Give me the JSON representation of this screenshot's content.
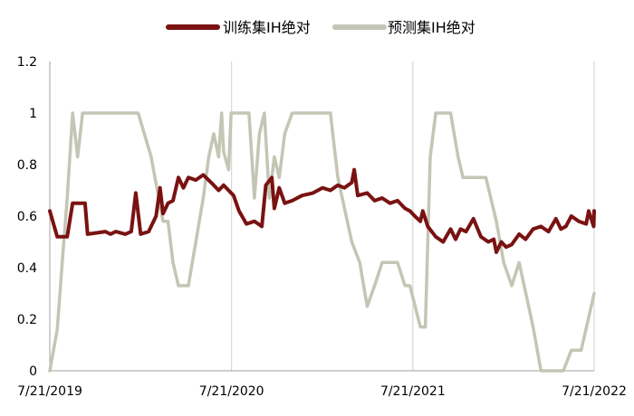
{
  "chart_data": {
    "type": "line",
    "legend_position": "top-center",
    "grid": "vertical",
    "x_tick_labels": [
      "7/21/2019",
      "7/21/2020",
      "7/21/2021",
      "7/21/2022"
    ],
    "y_tick_labels": [
      "0",
      "0.2",
      "0.4",
      "0.6",
      "0.8",
      "1",
      "1.2"
    ],
    "ylim": [
      0,
      1.2
    ],
    "y_ticks": [
      0,
      0.2,
      0.4,
      0.6,
      0.8,
      1,
      1.2
    ],
    "x_range": [
      "2019-07-21",
      "2022-07-21"
    ],
    "x_ticks": [
      "2019-07-21",
      "2020-07-21",
      "2021-07-21",
      "2022-07-21"
    ],
    "colors": {
      "train": "#7a1212",
      "predict": "#c5c5b5",
      "grid": "#d0d0d0",
      "axis": "#a0a0a0"
    },
    "series": [
      {
        "name": "训练集IH绝对",
        "key": "train",
        "points": [
          [
            "2019-07-21",
            0.62
          ],
          [
            "2019-08-05",
            0.52
          ],
          [
            "2019-08-25",
            0.52
          ],
          [
            "2019-09-05",
            0.65
          ],
          [
            "2019-09-30",
            0.65
          ],
          [
            "2019-10-05",
            0.53
          ],
          [
            "2019-11-10",
            0.54
          ],
          [
            "2019-11-20",
            0.53
          ],
          [
            "2019-12-01",
            0.54
          ],
          [
            "2019-12-20",
            0.53
          ],
          [
            "2020-01-01",
            0.54
          ],
          [
            "2020-01-10",
            0.69
          ],
          [
            "2020-01-20",
            0.53
          ],
          [
            "2020-02-05",
            0.54
          ],
          [
            "2020-02-20",
            0.6
          ],
          [
            "2020-02-28",
            0.71
          ],
          [
            "2020-03-05",
            0.61
          ],
          [
            "2020-03-15",
            0.65
          ],
          [
            "2020-03-25",
            0.66
          ],
          [
            "2020-04-05",
            0.75
          ],
          [
            "2020-04-15",
            0.71
          ],
          [
            "2020-04-25",
            0.75
          ],
          [
            "2020-05-10",
            0.74
          ],
          [
            "2020-05-25",
            0.76
          ],
          [
            "2020-06-10",
            0.73
          ],
          [
            "2020-06-25",
            0.7
          ],
          [
            "2020-07-05",
            0.72
          ],
          [
            "2020-07-15",
            0.7
          ],
          [
            "2020-07-25",
            0.68
          ],
          [
            "2020-08-05",
            0.62
          ],
          [
            "2020-08-20",
            0.57
          ],
          [
            "2020-09-05",
            0.58
          ],
          [
            "2020-09-20",
            0.56
          ],
          [
            "2020-09-28",
            0.72
          ],
          [
            "2020-10-10",
            0.75
          ],
          [
            "2020-10-15",
            0.63
          ],
          [
            "2020-10-25",
            0.71
          ],
          [
            "2020-11-05",
            0.65
          ],
          [
            "2020-11-20",
            0.66
          ],
          [
            "2020-12-10",
            0.68
          ],
          [
            "2021-01-01",
            0.69
          ],
          [
            "2021-01-20",
            0.71
          ],
          [
            "2021-02-05",
            0.7
          ],
          [
            "2021-02-20",
            0.72
          ],
          [
            "2021-03-05",
            0.71
          ],
          [
            "2021-03-20",
            0.73
          ],
          [
            "2021-03-25",
            0.78
          ],
          [
            "2021-04-01",
            0.68
          ],
          [
            "2021-04-20",
            0.69
          ],
          [
            "2021-05-05",
            0.66
          ],
          [
            "2021-05-20",
            0.67
          ],
          [
            "2021-06-05",
            0.65
          ],
          [
            "2021-06-20",
            0.66
          ],
          [
            "2021-07-05",
            0.63
          ],
          [
            "2021-07-15",
            0.62
          ],
          [
            "2021-07-25",
            0.6
          ],
          [
            "2021-08-05",
            0.58
          ],
          [
            "2021-08-10",
            0.62
          ],
          [
            "2021-08-20",
            0.56
          ],
          [
            "2021-09-05",
            0.52
          ],
          [
            "2021-09-20",
            0.5
          ],
          [
            "2021-10-05",
            0.55
          ],
          [
            "2021-10-15",
            0.51
          ],
          [
            "2021-10-25",
            0.55
          ],
          [
            "2021-11-05",
            0.54
          ],
          [
            "2021-11-20",
            0.59
          ],
          [
            "2021-12-05",
            0.52
          ],
          [
            "2021-12-20",
            0.5
          ],
          [
            "2021-12-31",
            0.51
          ],
          [
            "2022-01-05",
            0.46
          ],
          [
            "2022-01-15",
            0.5
          ],
          [
            "2022-01-25",
            0.48
          ],
          [
            "2022-02-05",
            0.49
          ],
          [
            "2022-02-20",
            0.53
          ],
          [
            "2022-03-05",
            0.51
          ],
          [
            "2022-03-20",
            0.55
          ],
          [
            "2022-04-05",
            0.56
          ],
          [
            "2022-04-20",
            0.54
          ],
          [
            "2022-05-05",
            0.59
          ],
          [
            "2022-05-15",
            0.55
          ],
          [
            "2022-05-25",
            0.56
          ],
          [
            "2022-06-05",
            0.6
          ],
          [
            "2022-06-20",
            0.58
          ],
          [
            "2022-07-05",
            0.57
          ],
          [
            "2022-07-10",
            0.62
          ],
          [
            "2022-07-20",
            0.56
          ],
          [
            "2022-07-21",
            0.62
          ]
        ]
      },
      {
        "name": "预测集IH绝对",
        "key": "predict",
        "points": [
          [
            "2019-07-21",
            0.0
          ],
          [
            "2019-08-05",
            0.16
          ],
          [
            "2019-08-15",
            0.42
          ],
          [
            "2019-08-25",
            0.67
          ],
          [
            "2019-09-05",
            1.0
          ],
          [
            "2019-09-15",
            0.83
          ],
          [
            "2019-09-25",
            1.0
          ],
          [
            "2020-01-01",
            1.0
          ],
          [
            "2020-01-15",
            1.0
          ],
          [
            "2020-02-10",
            0.83
          ],
          [
            "2020-03-05",
            0.58
          ],
          [
            "2020-03-15",
            0.58
          ],
          [
            "2020-03-25",
            0.42
          ],
          [
            "2020-04-05",
            0.33
          ],
          [
            "2020-04-25",
            0.33
          ],
          [
            "2020-05-10",
            0.5
          ],
          [
            "2020-05-25",
            0.67
          ],
          [
            "2020-06-05",
            0.83
          ],
          [
            "2020-06-15",
            0.92
          ],
          [
            "2020-06-25",
            0.83
          ],
          [
            "2020-07-01",
            1.0
          ],
          [
            "2020-07-05",
            0.85
          ],
          [
            "2020-07-15",
            0.78
          ],
          [
            "2020-07-20",
            1.0
          ],
          [
            "2020-08-25",
            1.0
          ],
          [
            "2020-09-05",
            0.67
          ],
          [
            "2020-09-15",
            0.92
          ],
          [
            "2020-09-25",
            1.0
          ],
          [
            "2020-10-05",
            0.67
          ],
          [
            "2020-10-15",
            0.83
          ],
          [
            "2020-10-25",
            0.75
          ],
          [
            "2020-11-05",
            0.92
          ],
          [
            "2020-11-20",
            1.0
          ],
          [
            "2021-02-05",
            1.0
          ],
          [
            "2021-02-20",
            0.75
          ],
          [
            "2021-03-20",
            0.5
          ],
          [
            "2021-04-05",
            0.42
          ],
          [
            "2021-04-20",
            0.25
          ],
          [
            "2021-05-05",
            0.33
          ],
          [
            "2021-05-20",
            0.42
          ],
          [
            "2021-06-20",
            0.42
          ],
          [
            "2021-07-05",
            0.33
          ],
          [
            "2021-07-15",
            0.33
          ],
          [
            "2021-08-05",
            0.17
          ],
          [
            "2021-08-15",
            0.17
          ],
          [
            "2021-08-25",
            0.83
          ],
          [
            "2021-09-05",
            1.0
          ],
          [
            "2021-10-05",
            1.0
          ],
          [
            "2021-10-20",
            0.83
          ],
          [
            "2021-10-30",
            0.75
          ],
          [
            "2021-12-15",
            0.75
          ],
          [
            "2022-01-05",
            0.58
          ],
          [
            "2022-01-20",
            0.42
          ],
          [
            "2022-02-05",
            0.33
          ],
          [
            "2022-02-20",
            0.42
          ],
          [
            "2022-03-20",
            0.17
          ],
          [
            "2022-04-05",
            0.0
          ],
          [
            "2022-05-20",
            0.0
          ],
          [
            "2022-06-05",
            0.08
          ],
          [
            "2022-06-25",
            0.08
          ],
          [
            "2022-07-21",
            0.3
          ]
        ]
      }
    ]
  }
}
